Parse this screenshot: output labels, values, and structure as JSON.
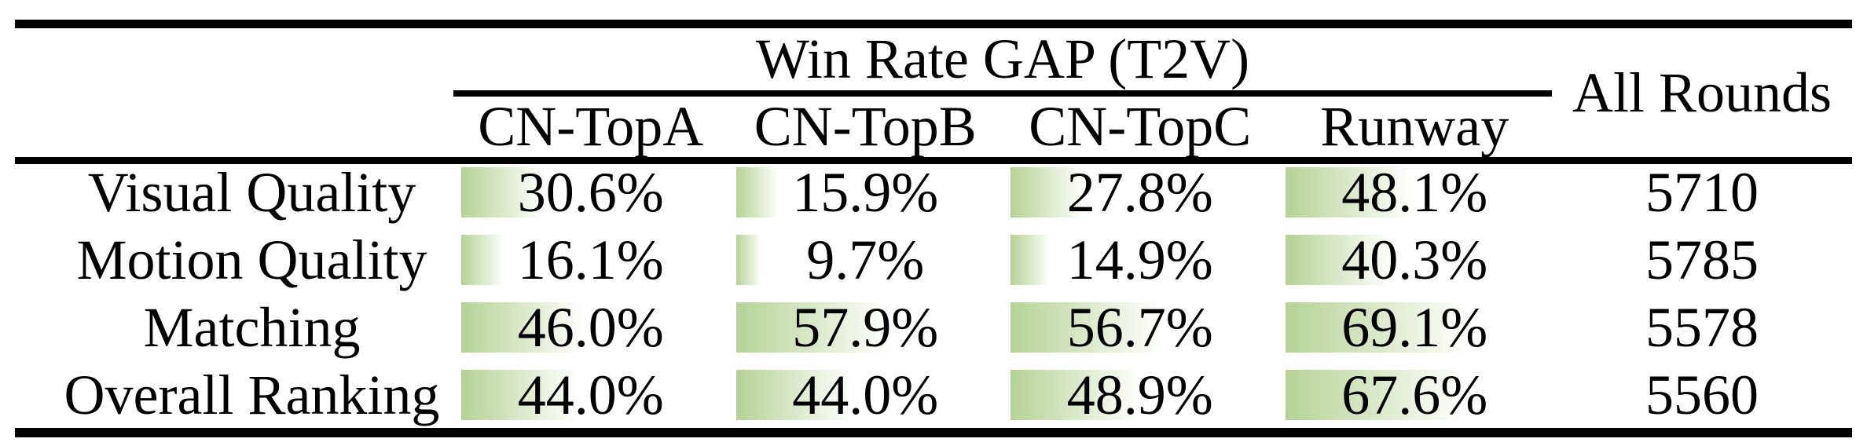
{
  "colors": {
    "bar-green": "#b5d295",
    "bar-fade": "#fdfefb"
  },
  "table": {
    "group_header": "Win Rate GAP (T2V)",
    "all_rounds_header": "All Rounds",
    "columns": [
      "CN-TopA",
      "CN-TopB",
      "CN-TopC",
      "Runway"
    ],
    "rows": [
      {
        "label": "Visual Quality",
        "cells": [
          {
            "text": "30.6%",
            "pct": 30.6
          },
          {
            "text": "15.9%",
            "pct": 15.9
          },
          {
            "text": "27.8%",
            "pct": 27.8
          },
          {
            "text": "48.1%",
            "pct": 48.1
          }
        ],
        "all_rounds": "5710"
      },
      {
        "label": "Motion Quality",
        "cells": [
          {
            "text": "16.1%",
            "pct": 16.1
          },
          {
            "text": "9.7%",
            "pct": 9.7
          },
          {
            "text": "14.9%",
            "pct": 14.9
          },
          {
            "text": "40.3%",
            "pct": 40.3
          }
        ],
        "all_rounds": "5785"
      },
      {
        "label": "Matching",
        "cells": [
          {
            "text": "46.0%",
            "pct": 46.0
          },
          {
            "text": "57.9%",
            "pct": 57.9
          },
          {
            "text": "56.7%",
            "pct": 56.7
          },
          {
            "text": "69.1%",
            "pct": 69.1
          }
        ],
        "all_rounds": "5578"
      },
      {
        "label": "Overall Ranking",
        "cells": [
          {
            "text": "44.0%",
            "pct": 44.0
          },
          {
            "text": "44.0%",
            "pct": 44.0
          },
          {
            "text": "48.9%",
            "pct": 48.9
          },
          {
            "text": "67.6%",
            "pct": 67.6
          }
        ],
        "all_rounds": "5560"
      }
    ]
  },
  "chart_data": {
    "type": "table",
    "title": "Win Rate GAP (T2V)",
    "categories": [
      "Visual Quality",
      "Motion Quality",
      "Matching",
      "Overall Ranking"
    ],
    "series": [
      {
        "name": "CN-TopA",
        "values": [
          30.6,
          16.1,
          46.0,
          44.0
        ],
        "unit": "%"
      },
      {
        "name": "CN-TopB",
        "values": [
          15.9,
          9.7,
          57.9,
          44.0
        ],
        "unit": "%"
      },
      {
        "name": "CN-TopC",
        "values": [
          27.8,
          14.9,
          56.7,
          48.9
        ],
        "unit": "%"
      },
      {
        "name": "Runway",
        "values": [
          48.1,
          40.3,
          69.1,
          67.6
        ],
        "unit": "%"
      },
      {
        "name": "All Rounds",
        "values": [
          5710,
          5785,
          5578,
          5560
        ],
        "unit": ""
      }
    ],
    "layout_hints": {
      "bars": "in-cell horizontal data bars, green gradient, width proportional to percent of cell"
    }
  }
}
